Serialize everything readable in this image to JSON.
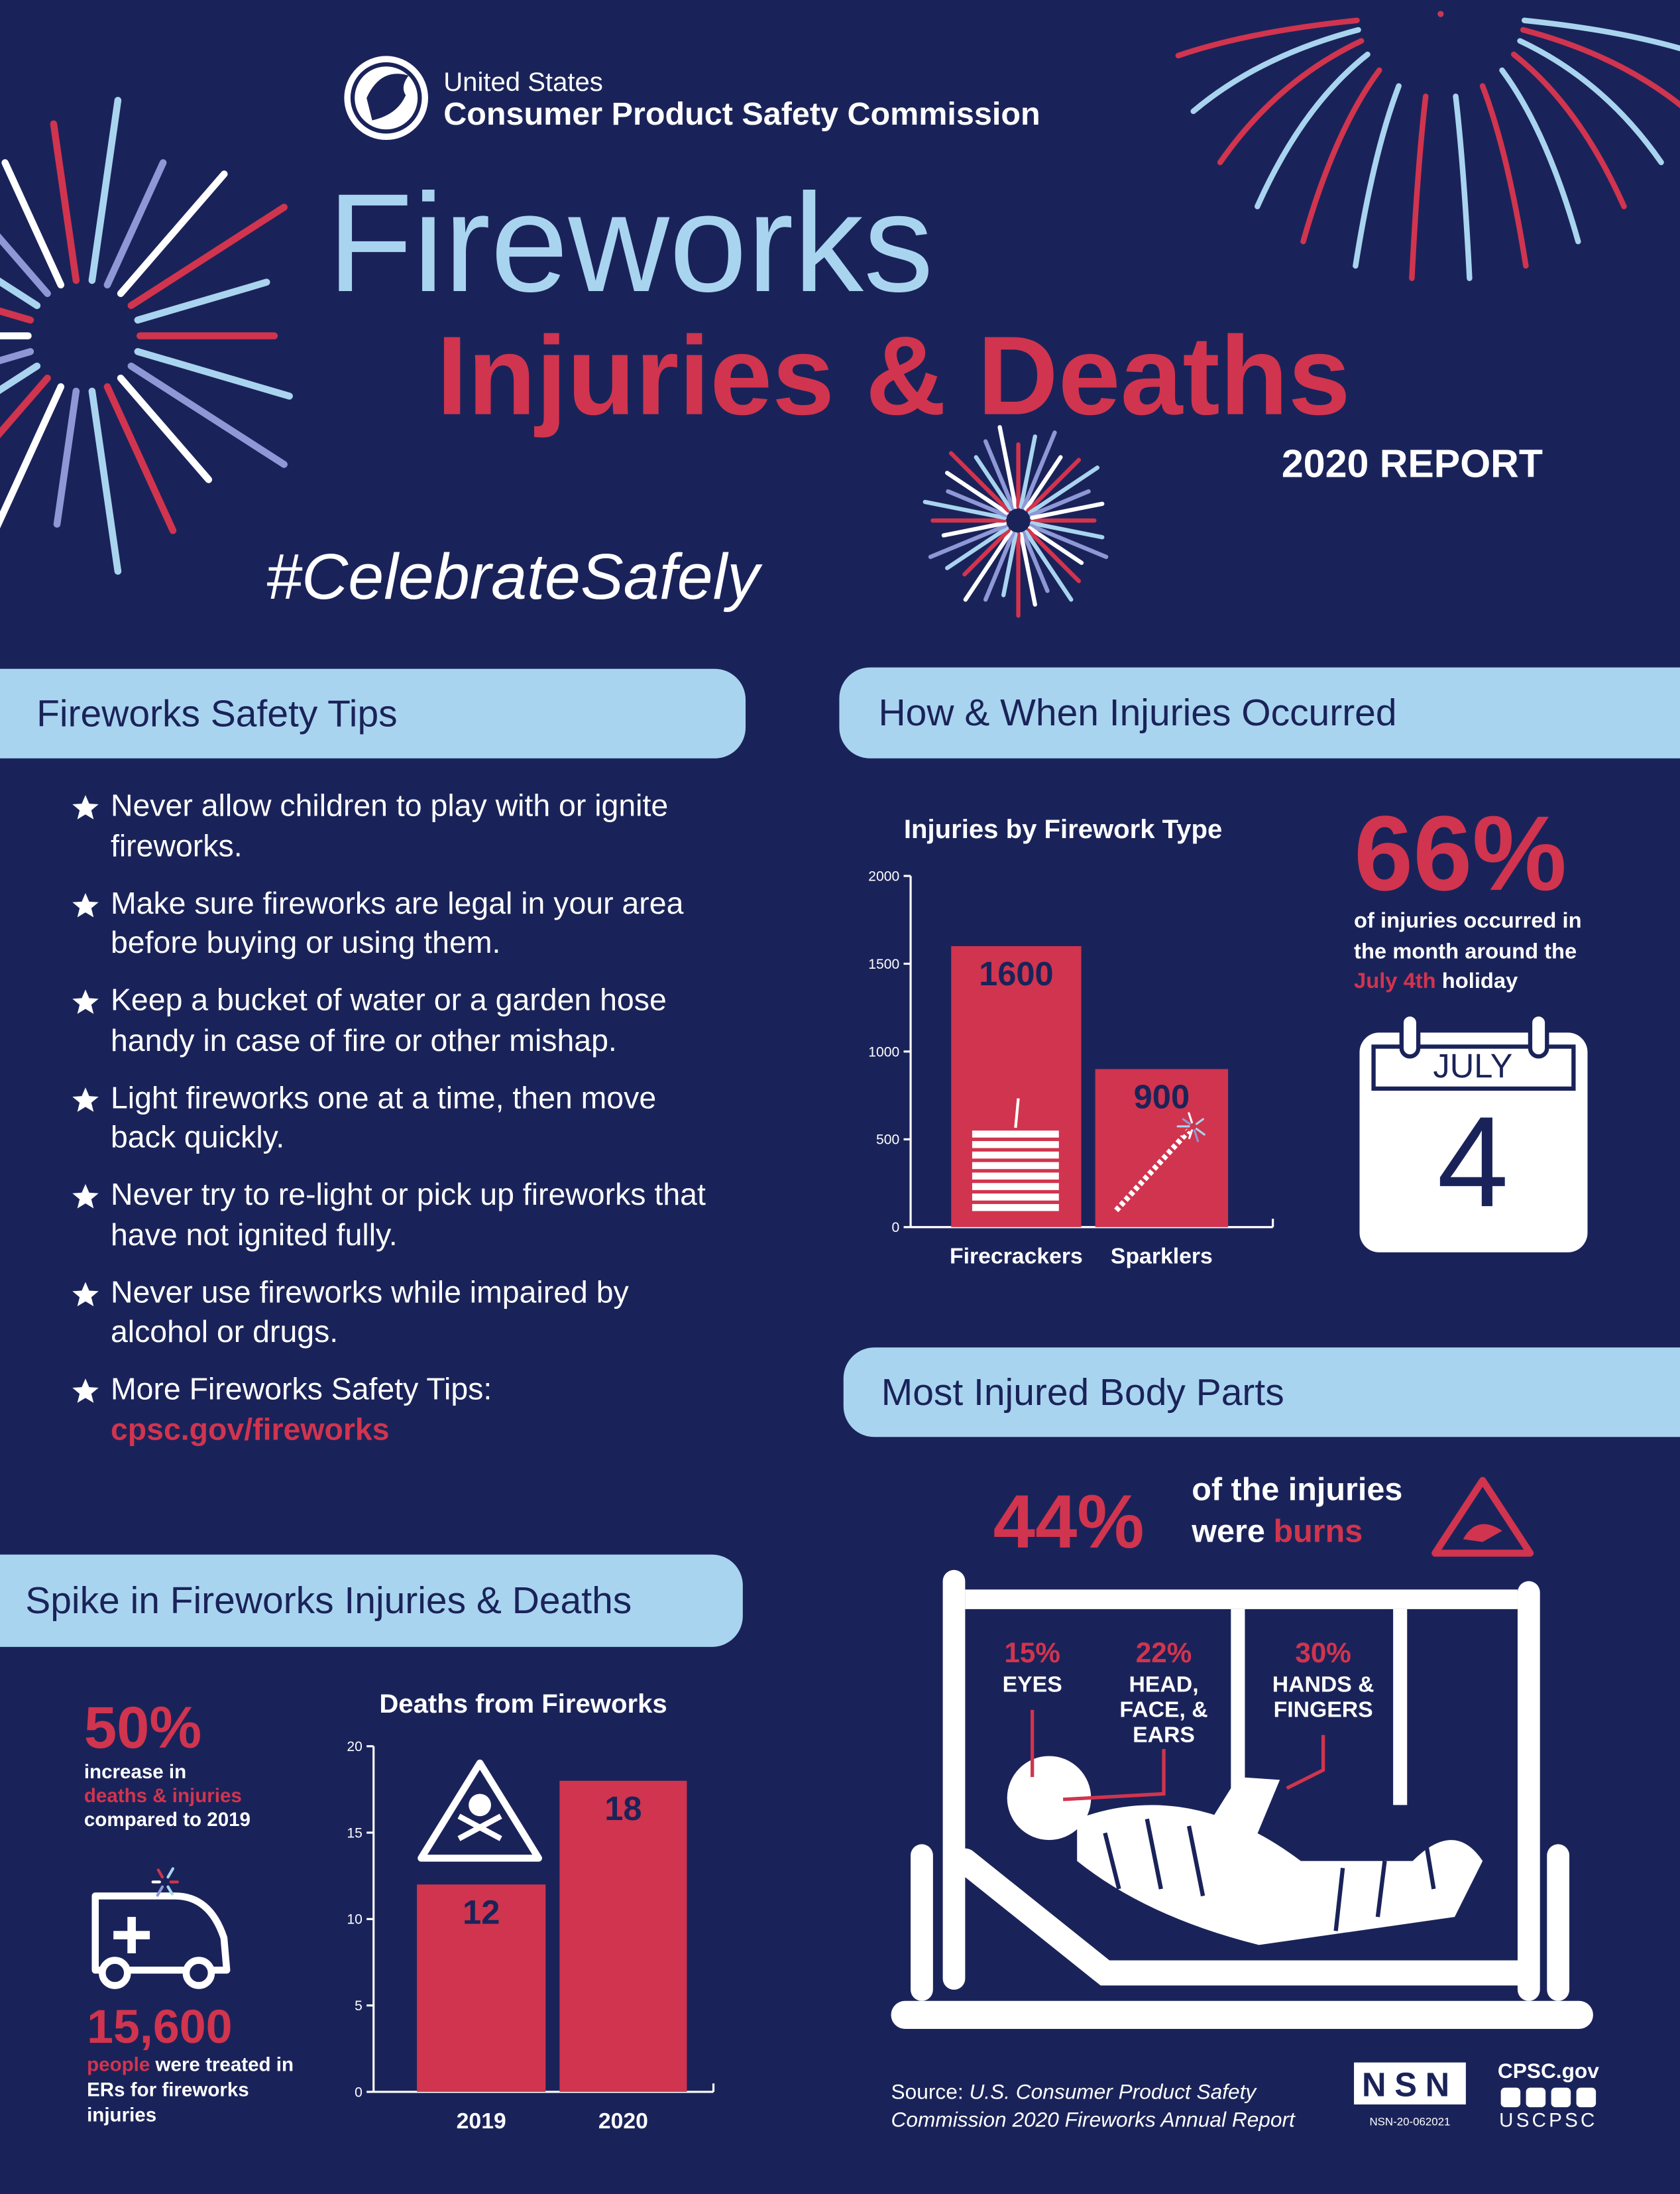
{
  "header": {
    "org_line1": "United States",
    "org_line2": "Consumer Product Safety Commission",
    "title": "Fireworks",
    "subtitle": "Injuries & Deaths",
    "report": "2020 REPORT",
    "hashtag": "#CelebrateSafely"
  },
  "tips": {
    "heading": "Fireworks Safety Tips",
    "items": [
      "Never allow children to play with or ignite fireworks.",
      "Make sure fireworks are legal in your area before buying or using them.",
      "Keep a bucket of water or a garden hose handy in case of fire or other mishap.",
      "Light fireworks one at a time, then move back quickly.",
      "Never try to re-light or pick up fireworks that have not ignited fully.",
      "Never use fireworks while impaired by alcohol or drugs.",
      "More Fireworks Safety Tips:"
    ],
    "link": "cpsc.gov/fireworks"
  },
  "how": {
    "heading": "How & When Injuries Occurred",
    "stat": "66%",
    "text_before": "of injuries occurred in the month around the",
    "highlight": "July 4th",
    "text_after": "holiday",
    "calendar_month": "JULY",
    "calendar_day": "4"
  },
  "body_parts": {
    "heading": "Most Injured Body Parts",
    "stat": "44%",
    "text_line1": "of the injuries",
    "text_line2": "were",
    "highlight": "burns",
    "parts": [
      {
        "pct": "15%",
        "label": "EYES"
      },
      {
        "pct": "22%",
        "label": "HEAD, FACE, & EARS"
      },
      {
        "pct": "30%",
        "label": "HANDS & FINGERS"
      }
    ]
  },
  "spike": {
    "heading": "Spike in Fireworks Injuries & Deaths",
    "stat": "50%",
    "text_line1": "increase in",
    "highlight": "deaths & injuries",
    "text_line2": "compared to 2019",
    "er_count": "15,600",
    "er_highlight": "people",
    "er_text": "were treated in ERs for fireworks injuries"
  },
  "footer": {
    "source_label": "Source:",
    "source": "U.S. Consumer Product Safety Commission 2020 Fireworks Annual Report",
    "nsn": "NSN",
    "nsn_code": "NSN-20-062021",
    "site": "CPSC.gov",
    "handle": "USCPSC"
  },
  "chart_data": [
    {
      "type": "bar",
      "title": "Injuries by Firework Type",
      "categories": [
        "Firecrackers",
        "Sparklers"
      ],
      "values": [
        1600,
        900
      ],
      "color": "#d1344e",
      "ylim": [
        0,
        2000
      ],
      "yticks": [
        0,
        500,
        1000,
        1500,
        2000
      ]
    },
    {
      "type": "bar",
      "title": "Deaths from Fireworks",
      "categories": [
        "2019",
        "2020"
      ],
      "values": [
        12,
        18
      ],
      "color": "#d1344e",
      "ylim": [
        0,
        20
      ],
      "yticks": [
        0,
        5,
        10,
        15,
        20
      ]
    }
  ]
}
